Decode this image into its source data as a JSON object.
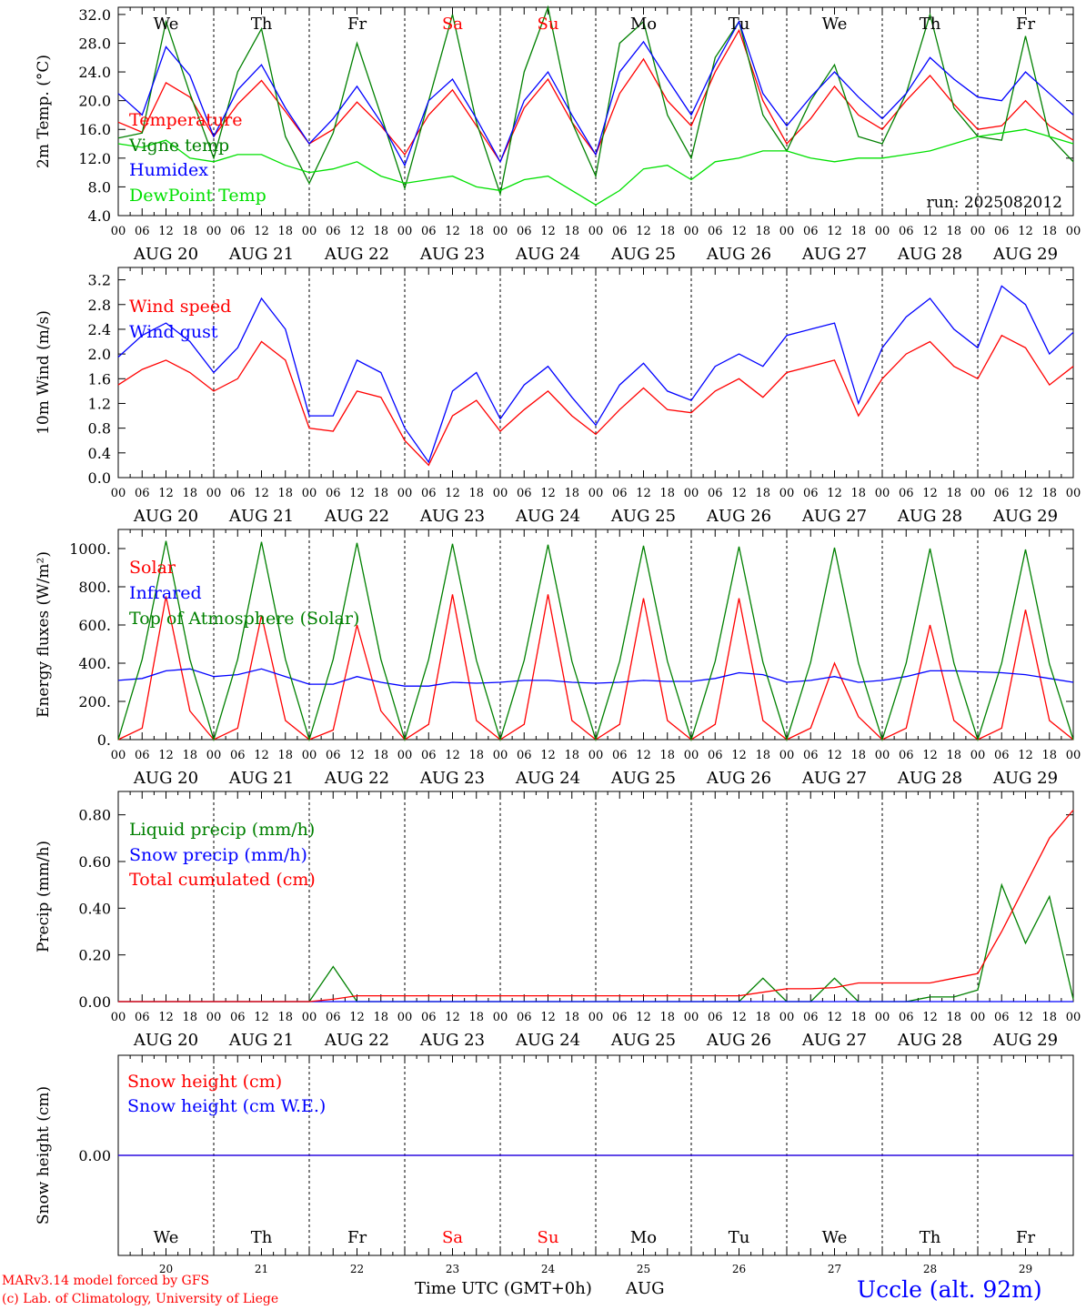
{
  "colors": {
    "red": "#ff0000",
    "green": "#008000",
    "blue": "#0000ff",
    "light_green": "#00e000",
    "weekend": "#ff0000",
    "weekday": "#000000"
  },
  "days": [
    {
      "abbr": "We",
      "date": "AUG 20",
      "num": "20",
      "weekend": false
    },
    {
      "abbr": "Th",
      "date": "AUG 21",
      "num": "21",
      "weekend": false
    },
    {
      "abbr": "Fr",
      "date": "AUG 22",
      "num": "22",
      "weekend": false
    },
    {
      "abbr": "Sa",
      "date": "AUG 23",
      "num": "23",
      "weekend": true
    },
    {
      "abbr": "Su",
      "date": "AUG 24",
      "num": "24",
      "weekend": true
    },
    {
      "abbr": "Mo",
      "date": "AUG 25",
      "num": "25",
      "weekend": false
    },
    {
      "abbr": "Tu",
      "date": "AUG 26",
      "num": "26",
      "weekend": false
    },
    {
      "abbr": "We",
      "date": "AUG 27",
      "num": "27",
      "weekend": false
    },
    {
      "abbr": "Th",
      "date": "AUG 28",
      "num": "28",
      "weekend": false
    },
    {
      "abbr": "Fr",
      "date": "AUG 29",
      "num": "29",
      "weekend": false
    }
  ],
  "hour_ticks": [
    "00",
    "06",
    "12",
    "18"
  ],
  "final_tick": "00",
  "footer": {
    "model": "MARv3.14 model forced by GFS",
    "lab": "(c) Lab. of Climatology, University of Liege",
    "time_axis": "Time UTC (GMT+0h)",
    "month": "AUG",
    "station": "Uccle (alt. 92m)"
  },
  "chart_data": [
    {
      "type": "line",
      "ylabel": "2m Temp. (°C)",
      "ylim": [
        4,
        33
      ],
      "yticks": [
        "4.0",
        "8.0",
        "12.0",
        "16.0",
        "20.0",
        "24.0",
        "28.0",
        "32.0"
      ],
      "run_label": "run: 2025082012",
      "x_hours": [
        0,
        6,
        12,
        18,
        24,
        30,
        36,
        42,
        48,
        54,
        60,
        66,
        72,
        78,
        84,
        90,
        96,
        102,
        108,
        114,
        120,
        126,
        132,
        138,
        144,
        150,
        156,
        162,
        168,
        174,
        180,
        186,
        192,
        198,
        204,
        210,
        216,
        222,
        228,
        234,
        240
      ],
      "series": [
        {
          "name": "Temperature",
          "color": "#ff0000",
          "values": [
            17.0,
            15.6,
            22.5,
            20.5,
            15.0,
            19.5,
            22.8,
            18.5,
            14.0,
            16.0,
            19.8,
            16.5,
            12.5,
            18.0,
            21.5,
            16.5,
            11.5,
            19.0,
            23.0,
            17.0,
            12.5,
            21.0,
            25.8,
            20.0,
            16.5,
            24.0,
            29.8,
            20.0,
            14.0,
            17.5,
            22.0,
            18.0,
            16.0,
            20.0,
            23.5,
            19.5,
            16.0,
            16.5,
            20.0,
            16.5,
            14.5
          ]
        },
        {
          "name": "Vigne temp",
          "color": "#008000",
          "values": [
            14.8,
            15.5,
            31.0,
            21.0,
            12.0,
            24.0,
            30.0,
            15.0,
            8.5,
            15.5,
            28.0,
            18.0,
            7.8,
            20.0,
            32.0,
            17.0,
            7.0,
            24.0,
            33.0,
            17.0,
            9.5,
            28.0,
            31.0,
            18.0,
            12.0,
            26.0,
            31.0,
            18.0,
            13.0,
            20.0,
            25.0,
            15.0,
            14.0,
            21.0,
            32.0,
            19.0,
            15.0,
            14.5,
            29.0,
            15.0,
            11.5
          ]
        },
        {
          "name": "Humidex",
          "color": "#0000ff",
          "values": [
            21.0,
            18.0,
            27.5,
            23.5,
            15.0,
            21.5,
            25.0,
            19.0,
            14.0,
            17.5,
            22.0,
            17.0,
            11.0,
            20.0,
            23.0,
            17.5,
            11.5,
            20.0,
            24.0,
            18.0,
            12.5,
            24.0,
            28.2,
            23.0,
            18.0,
            25.0,
            31.0,
            21.0,
            16.5,
            20.5,
            24.0,
            20.5,
            17.5,
            21.0,
            26.0,
            23.0,
            20.5,
            20.0,
            24.0,
            21.0,
            18.0
          ]
        },
        {
          "name": "DewPoint Temp",
          "color": "#00e000",
          "values": [
            14.0,
            13.5,
            14.5,
            12.0,
            11.5,
            12.5,
            12.5,
            11.0,
            10.0,
            10.5,
            11.5,
            9.5,
            8.5,
            9.0,
            9.5,
            8.0,
            7.5,
            9.0,
            9.5,
            7.5,
            5.5,
            7.5,
            10.5,
            11.0,
            9.0,
            11.5,
            12.0,
            13.0,
            13.0,
            12.0,
            11.5,
            12.0,
            12.0,
            12.5,
            13.0,
            14.0,
            15.0,
            15.5,
            16.0,
            15.0,
            14.0
          ]
        }
      ]
    },
    {
      "type": "line",
      "ylabel": "10m Wind (m/s)",
      "ylim": [
        0,
        3.4
      ],
      "yticks": [
        "0.0",
        "0.4",
        "0.8",
        "1.2",
        "1.6",
        "2.0",
        "2.4",
        "2.8",
        "3.2"
      ],
      "x_hours": [
        0,
        6,
        12,
        18,
        24,
        30,
        36,
        42,
        48,
        54,
        60,
        66,
        72,
        78,
        84,
        90,
        96,
        102,
        108,
        114,
        120,
        126,
        132,
        138,
        144,
        150,
        156,
        162,
        168,
        174,
        180,
        186,
        192,
        198,
        204,
        210,
        216,
        222,
        228,
        234,
        240
      ],
      "series": [
        {
          "name": "Wind speed",
          "color": "#ff0000",
          "values": [
            1.5,
            1.75,
            1.9,
            1.7,
            1.4,
            1.6,
            2.2,
            1.9,
            0.8,
            0.75,
            1.4,
            1.3,
            0.6,
            0.2,
            1.0,
            1.25,
            0.75,
            1.1,
            1.4,
            1.0,
            0.7,
            1.1,
            1.45,
            1.1,
            1.05,
            1.4,
            1.6,
            1.3,
            1.7,
            1.8,
            1.9,
            1.0,
            1.6,
            2.0,
            2.2,
            1.8,
            1.6,
            2.3,
            2.1,
            1.5,
            1.8
          ]
        },
        {
          "name": "Wind gust",
          "color": "#0000ff",
          "values": [
            1.95,
            2.3,
            2.5,
            2.2,
            1.7,
            2.1,
            2.9,
            2.4,
            1.0,
            1.0,
            1.9,
            1.7,
            0.8,
            0.25,
            1.4,
            1.7,
            0.95,
            1.5,
            1.8,
            1.3,
            0.85,
            1.5,
            1.85,
            1.4,
            1.25,
            1.8,
            2.0,
            1.8,
            2.3,
            2.4,
            2.5,
            1.2,
            2.1,
            2.6,
            2.9,
            2.4,
            2.1,
            3.1,
            2.8,
            2.0,
            2.35
          ]
        }
      ]
    },
    {
      "type": "line",
      "ylabel": "Energy fluxes (W/m²)",
      "ylim": [
        0,
        1100
      ],
      "yticks": [
        "0.",
        "200.",
        "400.",
        "600.",
        "800.",
        "1000."
      ],
      "x_hours": [
        0,
        6,
        12,
        18,
        24,
        30,
        36,
        42,
        48,
        54,
        60,
        66,
        72,
        78,
        84,
        90,
        96,
        102,
        108,
        114,
        120,
        126,
        132,
        138,
        144,
        150,
        156,
        162,
        168,
        174,
        180,
        186,
        192,
        198,
        204,
        210,
        216,
        222,
        228,
        234,
        240
      ],
      "series": [
        {
          "name": "Solar",
          "color": "#ff0000",
          "values": [
            0,
            60,
            750,
            150,
            0,
            60,
            650,
            100,
            0,
            50,
            600,
            150,
            0,
            80,
            760,
            100,
            0,
            80,
            760,
            100,
            0,
            80,
            740,
            100,
            0,
            80,
            740,
            100,
            0,
            60,
            400,
            120,
            0,
            60,
            600,
            100,
            0,
            60,
            680,
            100,
            0
          ]
        },
        {
          "name": "Infrared",
          "color": "#0000ff",
          "values": [
            310,
            320,
            360,
            370,
            330,
            340,
            370,
            330,
            290,
            290,
            330,
            300,
            280,
            280,
            300,
            295,
            300,
            310,
            310,
            300,
            295,
            300,
            310,
            305,
            305,
            320,
            350,
            340,
            300,
            310,
            330,
            300,
            310,
            330,
            360,
            360,
            355,
            350,
            340,
            320,
            300
          ]
        },
        {
          "name": "Top of Atmosphere (Solar)",
          "color": "#008000",
          "values": [
            0,
            420,
            1040,
            420,
            0,
            420,
            1035,
            420,
            0,
            420,
            1030,
            420,
            0,
            420,
            1025,
            415,
            0,
            415,
            1020,
            410,
            0,
            410,
            1015,
            410,
            0,
            410,
            1010,
            405,
            0,
            405,
            1005,
            400,
            0,
            400,
            1000,
            400,
            0,
            400,
            995,
            395,
            0
          ]
        }
      ]
    },
    {
      "type": "line",
      "ylabel": "Precip (mm/h)",
      "ylim": [
        0,
        0.9
      ],
      "yticks": [
        "0.00",
        "0.20",
        "0.40",
        "0.60",
        "0.80"
      ],
      "x_hours": [
        0,
        6,
        12,
        18,
        24,
        30,
        36,
        42,
        48,
        54,
        60,
        66,
        72,
        78,
        84,
        90,
        96,
        102,
        108,
        114,
        120,
        126,
        132,
        138,
        144,
        150,
        156,
        162,
        168,
        174,
        180,
        186,
        192,
        198,
        204,
        210,
        216,
        222,
        228,
        234,
        240
      ],
      "series": [
        {
          "name": "Liquid precip (mm/h)",
          "color": "#008000",
          "values": [
            0,
            0,
            0,
            0,
            0,
            0,
            0,
            0,
            0,
            0.15,
            0,
            0,
            0,
            0,
            0,
            0,
            0,
            0,
            0,
            0,
            0,
            0,
            0,
            0,
            0,
            0,
            0,
            0.1,
            0,
            0,
            0.1,
            0,
            0,
            0,
            0.02,
            0.02,
            0.05,
            0.5,
            0.25,
            0.45,
            0.01
          ]
        },
        {
          "name": "Snow precip (mm/h)",
          "color": "#0000ff",
          "values": [
            0,
            0,
            0,
            0,
            0,
            0,
            0,
            0,
            0,
            0,
            0,
            0,
            0,
            0,
            0,
            0,
            0,
            0,
            0,
            0,
            0,
            0,
            0,
            0,
            0,
            0,
            0,
            0,
            0,
            0,
            0,
            0,
            0,
            0,
            0,
            0,
            0,
            0,
            0,
            0,
            0
          ]
        },
        {
          "name": "Total cumulated (cm)",
          "color": "#ff0000",
          "values": [
            0,
            0,
            0,
            0,
            0,
            0,
            0,
            0,
            0,
            0.01,
            0.025,
            0.025,
            0.025,
            0.025,
            0.025,
            0.025,
            0.025,
            0.025,
            0.025,
            0.025,
            0.025,
            0.025,
            0.025,
            0.025,
            0.025,
            0.025,
            0.025,
            0.04,
            0.055,
            0.055,
            0.06,
            0.08,
            0.08,
            0.08,
            0.08,
            0.1,
            0.12,
            0.3,
            0.5,
            0.7,
            0.82
          ]
        }
      ]
    },
    {
      "type": "line",
      "ylabel": "Snow height (cm)",
      "ylim": [
        -1,
        1
      ],
      "yticks": [
        "0.00"
      ],
      "x_hours": [
        0,
        240
      ],
      "series": [
        {
          "name": "Snow height (cm)",
          "color": "#ff0000",
          "values": [
            0,
            0
          ]
        },
        {
          "name": "Snow height (cm W.E.)",
          "color": "#0000ff",
          "values": [
            0,
            0
          ]
        }
      ]
    }
  ]
}
